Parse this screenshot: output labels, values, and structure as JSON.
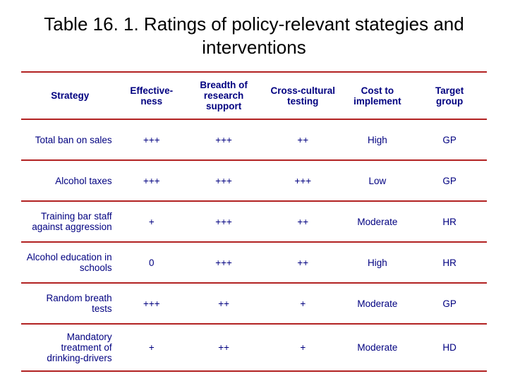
{
  "title": "Table 16. 1. Ratings of policy-relevant stategies and interventions",
  "table": {
    "type": "table",
    "text_color": "#000080",
    "rule_color": "#b22222",
    "header_fontsize": 13.5,
    "cell_fontsize": 13.5,
    "title_fontsize": 26,
    "title_color": "#000000",
    "columns": [
      {
        "key": "strategy",
        "label": "Strategy",
        "align": "right",
        "width_pct": 21
      },
      {
        "key": "effectiveness",
        "label": "Effective-\nness",
        "align": "center",
        "width_pct": 14
      },
      {
        "key": "breadth",
        "label": "Breadth of\nresearch\nsupport",
        "align": "center",
        "width_pct": 17
      },
      {
        "key": "cross_cultural",
        "label": "Cross-cultural\ntesting",
        "align": "center",
        "width_pct": 17
      },
      {
        "key": "cost",
        "label": "Cost to\nimplement",
        "align": "center",
        "width_pct": 15
      },
      {
        "key": "target",
        "label": "Target\ngroup",
        "align": "center",
        "width_pct": 16
      }
    ],
    "rows": [
      {
        "strategy": "Total ban on sales",
        "effectiveness": "+++",
        "breadth": "+++",
        "cross_cultural": "++",
        "cost": "High",
        "target": "GP"
      },
      {
        "strategy": "Alcohol taxes",
        "effectiveness": "+++",
        "breadth": "+++",
        "cross_cultural": "+++",
        "cost": "Low",
        "target": "GP"
      },
      {
        "strategy": "Training bar staff against aggression",
        "effectiveness": "+",
        "breadth": "+++",
        "cross_cultural": "++",
        "cost": "Moderate",
        "target": "HR"
      },
      {
        "strategy": "Alcohol education in schools",
        "effectiveness": "0",
        "breadth": "+++",
        "cross_cultural": "++",
        "cost": "High",
        "target": "HR"
      },
      {
        "strategy": "Random breath tests",
        "effectiveness": "+++",
        "breadth": "++",
        "cross_cultural": "+",
        "cost": "Moderate",
        "target": "GP"
      },
      {
        "strategy": "Mandatory treatment of drinking-drivers",
        "effectiveness": "+",
        "breadth": "++",
        "cross_cultural": "+",
        "cost": "Moderate",
        "target": "HD"
      }
    ]
  }
}
